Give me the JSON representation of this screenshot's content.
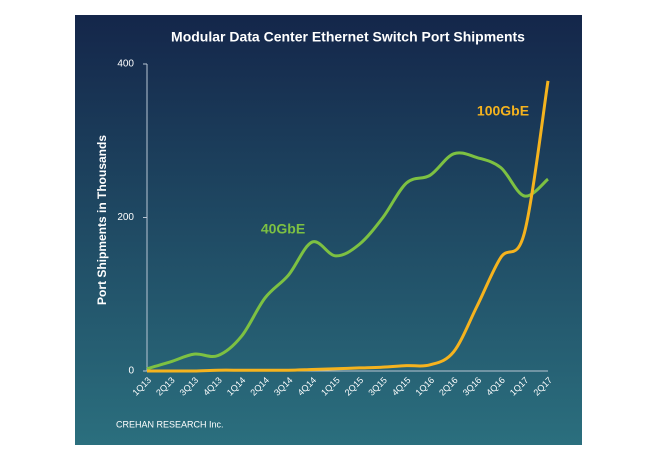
{
  "chart_data": {
    "type": "line",
    "title": "Modular Data Center Ethernet Switch Port Shipments",
    "y_label": "Port Shipments in Thousands",
    "source": "CREHAN RESEARCH Inc.",
    "categories": [
      "1Q13",
      "2Q13",
      "3Q13",
      "4Q13",
      "1Q14",
      "2Q14",
      "3Q14",
      "4Q14",
      "1Q15",
      "2Q15",
      "3Q15",
      "4Q15",
      "1Q16",
      "2Q16",
      "3Q16",
      "4Q16",
      "1Q17",
      "2Q17"
    ],
    "series": [
      {
        "name": "40GbE",
        "color": "#7dc142",
        "values": [
          3,
          12,
          22,
          20,
          45,
          95,
          125,
          168,
          150,
          165,
          200,
          245,
          255,
          283,
          278,
          265,
          228,
          250
        ]
      },
      {
        "name": "100GbE",
        "color": "#f5b31e",
        "values": [
          0,
          0,
          0,
          1,
          1,
          1,
          1,
          2,
          3,
          4,
          5,
          7,
          8,
          25,
          85,
          148,
          180,
          378
        ]
      }
    ],
    "ylim": [
      0,
      400
    ],
    "yticks": [
      0,
      200,
      400
    ],
    "grid": false
  }
}
